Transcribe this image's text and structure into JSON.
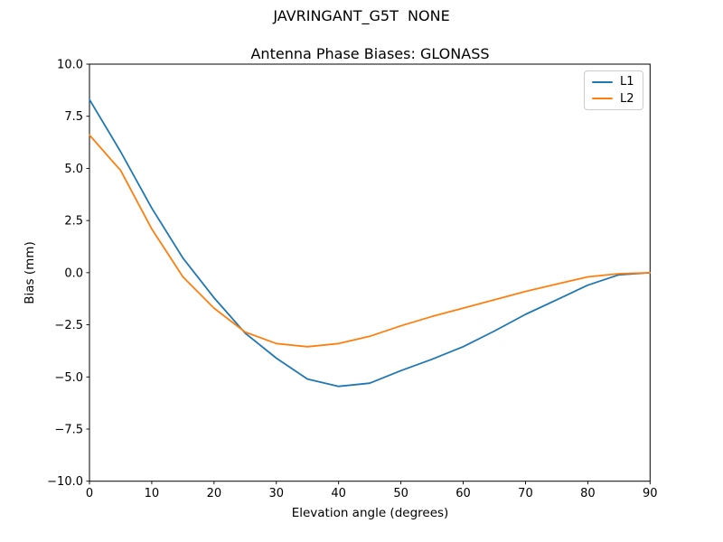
{
  "chart_data": {
    "type": "line",
    "suptitle": "JAVRINGANT_G5T  NONE",
    "title": "Antenna Phase Biases: GLONASS",
    "xlabel": "Elevation angle (degrees)",
    "ylabel": "Bias (mm)",
    "xlim": [
      0,
      90
    ],
    "ylim": [
      -10,
      10
    ],
    "xticks": [
      0,
      10,
      20,
      30,
      40,
      50,
      60,
      70,
      80,
      90
    ],
    "yticks": [
      10.0,
      7.5,
      5.0,
      2.5,
      0.0,
      -2.5,
      -5.0,
      -7.5,
      -10.0
    ],
    "grid": false,
    "legend_position": "upper right",
    "x": [
      0,
      5,
      10,
      15,
      20,
      25,
      30,
      35,
      40,
      45,
      50,
      55,
      60,
      65,
      70,
      75,
      80,
      85,
      90
    ],
    "series": [
      {
        "name": "L1",
        "color": "#1f77b4",
        "values": [
          8.3,
          5.8,
          3.1,
          0.7,
          -1.2,
          -2.9,
          -4.1,
          -5.1,
          -5.45,
          -5.3,
          -4.7,
          -4.15,
          -3.55,
          -2.8,
          -2.0,
          -1.3,
          -0.6,
          -0.1,
          0.0
        ]
      },
      {
        "name": "L2",
        "color": "#ff7f0e",
        "values": [
          6.6,
          4.9,
          2.1,
          -0.2,
          -1.7,
          -2.85,
          -3.4,
          -3.55,
          -3.4,
          -3.05,
          -2.55,
          -2.1,
          -1.7,
          -1.3,
          -0.9,
          -0.55,
          -0.2,
          -0.05,
          0.0
        ]
      }
    ]
  },
  "colors": {
    "axes": "#000000",
    "legend_border": "#cccccc",
    "background": "#ffffff"
  }
}
